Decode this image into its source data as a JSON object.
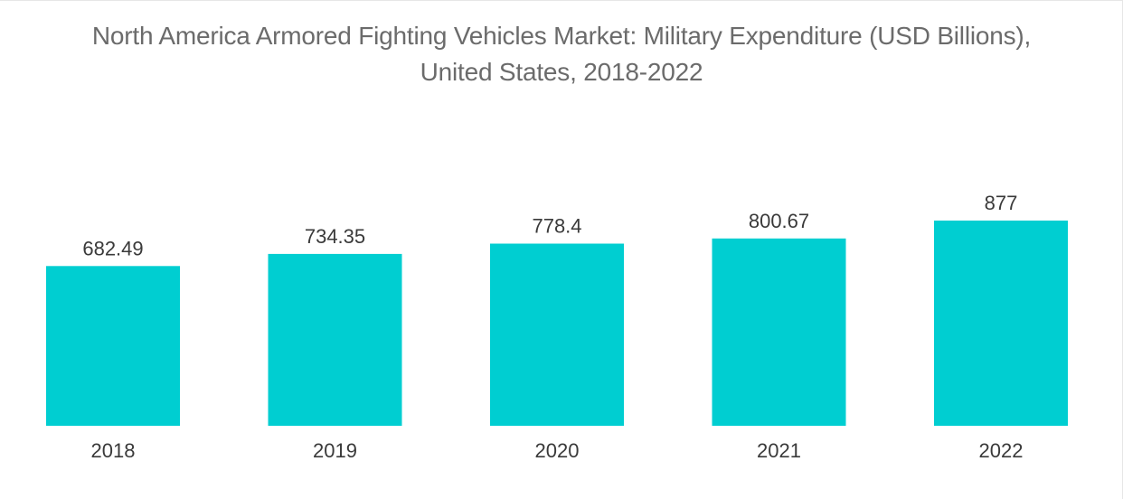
{
  "chart_data": {
    "type": "bar",
    "title_line1": "North America Armored Fighting Vehicles Market: Military Expenditure (USD Billions),",
    "title_line2": "United States, 2018-2022",
    "categories": [
      "2018",
      "2019",
      "2020",
      "2021",
      "2022"
    ],
    "values": [
      682.49,
      734.35,
      778.4,
      800.67,
      877
    ],
    "value_labels": [
      "682.49",
      "734.35",
      "778.4",
      "800.67",
      "877"
    ],
    "xlabel": "",
    "ylabel": "",
    "ylim": [
      0,
      877
    ],
    "grid": false,
    "legend": "none",
    "bar_color": "#00CED1"
  }
}
